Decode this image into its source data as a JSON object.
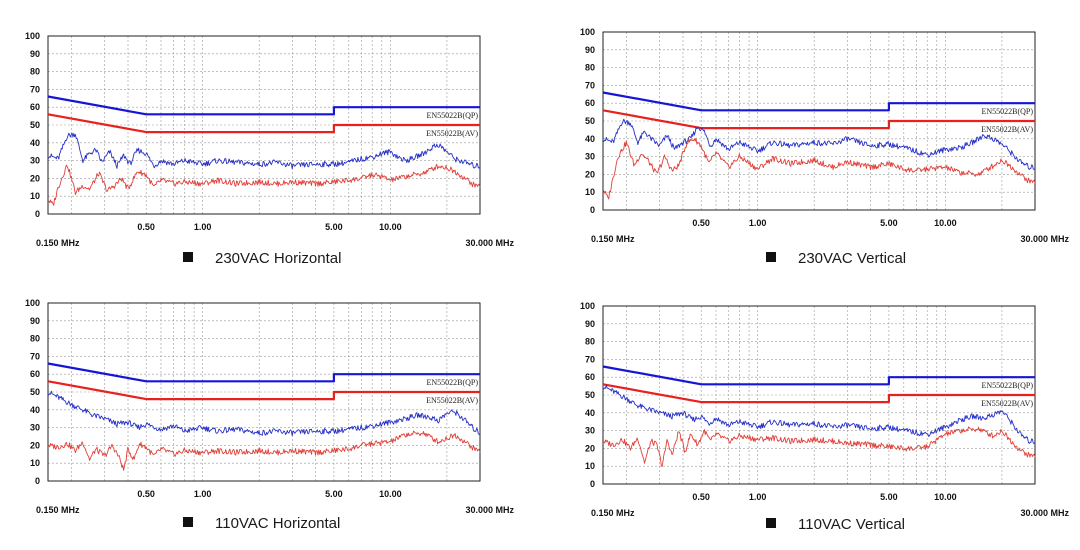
{
  "chart_data": [
    {
      "type": "line",
      "caption": "230VAC Horizontal",
      "x_scale": "log",
      "xlim": [
        0.15,
        30
      ],
      "ylim": [
        0,
        100
      ],
      "y_ticks": [
        0,
        10,
        20,
        30,
        40,
        50,
        60,
        70,
        80,
        90,
        100
      ],
      "x_ticks": [
        {
          "value": 0.5,
          "label": "0.50"
        },
        {
          "value": 1,
          "label": "1.00"
        },
        {
          "value": 5,
          "label": "5.00"
        },
        {
          "value": 10,
          "label": "10.00"
        }
      ],
      "x_start_label": "0.150 MHz",
      "x_end_label": "30.000 MHz",
      "grid": true,
      "series": [
        {
          "name": "EN55022B(QP)",
          "color": "#1515d6",
          "role": "limit",
          "x": [
            0.15,
            0.5,
            5,
            5,
            30
          ],
          "y": [
            66,
            56,
            56,
            60,
            60
          ]
        },
        {
          "name": "EN55022B(AV)",
          "color": "#e8201e",
          "role": "limit",
          "x": [
            0.15,
            0.5,
            5,
            5,
            30
          ],
          "y": [
            56,
            46,
            46,
            50,
            50
          ]
        },
        {
          "color": "#2630c8",
          "role": "measurement",
          "x": [
            0.15,
            0.17,
            0.19,
            0.21,
            0.23,
            0.25,
            0.27,
            0.29,
            0.32,
            0.35,
            0.38,
            0.41,
            0.45,
            0.5,
            0.55,
            0.6,
            0.7,
            0.8,
            1.0,
            1.2,
            1.5,
            2.0,
            2.5,
            3.0,
            4.0,
            5.0,
            6.0,
            7.0,
            8.0,
            9.0,
            10.0,
            11.0,
            12.0,
            13.0,
            15.0,
            17.0,
            18.0,
            20.0,
            22.0,
            25.0,
            28.0,
            30.0
          ],
          "y": [
            33,
            31,
            44,
            45,
            30,
            34,
            36,
            29,
            35,
            27,
            33,
            28,
            36,
            34,
            27,
            30,
            28,
            30,
            28,
            30,
            29,
            28,
            29,
            27,
            28,
            28,
            29,
            31,
            32,
            34,
            35,
            32,
            30,
            31,
            34,
            38,
            39,
            35,
            31,
            29,
            27,
            27
          ]
        },
        {
          "color": "#e0403a",
          "role": "measurement",
          "x": [
            0.15,
            0.16,
            0.17,
            0.19,
            0.21,
            0.23,
            0.25,
            0.28,
            0.31,
            0.34,
            0.37,
            0.4,
            0.45,
            0.5,
            0.55,
            0.6,
            0.7,
            0.8,
            1.0,
            1.2,
            1.5,
            2.0,
            2.5,
            3.0,
            4.0,
            5.0,
            6.0,
            7.0,
            8.0,
            9.0,
            10.0,
            12.0,
            15.0,
            18.0,
            20.0,
            22.0,
            25.0,
            28.0,
            30.0
          ],
          "y": [
            8,
            5,
            15,
            28,
            12,
            16,
            14,
            23,
            13,
            16,
            20,
            14,
            24,
            22,
            15,
            19,
            17,
            18,
            17,
            19,
            17,
            18,
            17,
            18,
            17,
            18,
            19,
            20,
            22,
            21,
            19,
            21,
            23,
            27,
            26,
            24,
            20,
            16,
            16
          ]
        }
      ]
    },
    {
      "type": "line",
      "caption": "230VAC Vertical",
      "x_scale": "log",
      "xlim": [
        0.15,
        30
      ],
      "ylim": [
        0,
        100
      ],
      "y_ticks": [
        0,
        10,
        20,
        30,
        40,
        50,
        60,
        70,
        80,
        90,
        100
      ],
      "x_ticks": [
        {
          "value": 0.5,
          "label": "0.50"
        },
        {
          "value": 1,
          "label": "1.00"
        },
        {
          "value": 5,
          "label": "5.00"
        },
        {
          "value": 10,
          "label": "10.00"
        }
      ],
      "x_start_label": "0.150 MHz",
      "x_end_label": "30.000 MHz",
      "grid": true,
      "series": [
        {
          "name": "EN55022B(QP)",
          "color": "#1515d6",
          "role": "limit",
          "x": [
            0.15,
            0.5,
            5,
            5,
            30
          ],
          "y": [
            66,
            56,
            56,
            60,
            60
          ]
        },
        {
          "name": "EN55022B(AV)",
          "color": "#e8201e",
          "role": "limit",
          "x": [
            0.15,
            0.5,
            5,
            5,
            30
          ],
          "y": [
            56,
            46,
            46,
            50,
            50
          ]
        },
        {
          "color": "#2630c8",
          "role": "measurement",
          "x": [
            0.15,
            0.17,
            0.19,
            0.21,
            0.23,
            0.25,
            0.27,
            0.3,
            0.33,
            0.36,
            0.4,
            0.44,
            0.48,
            0.52,
            0.56,
            0.6,
            0.7,
            0.8,
            1.0,
            1.2,
            1.5,
            2.0,
            2.5,
            3.0,
            4.0,
            5.0,
            6.0,
            7.0,
            8.0,
            10.0,
            12.0,
            14.0,
            16.0,
            18.0,
            20.0,
            22.0,
            25.0,
            28.0,
            30.0
          ],
          "y": [
            40,
            38,
            50,
            49,
            38,
            44,
            40,
            36,
            42,
            34,
            38,
            40,
            47,
            44,
            36,
            40,
            34,
            38,
            33,
            38,
            36,
            38,
            37,
            40,
            36,
            37,
            35,
            33,
            31,
            34,
            35,
            38,
            42,
            40,
            37,
            33,
            27,
            24,
            24
          ]
        },
        {
          "color": "#e0403a",
          "role": "measurement",
          "x": [
            0.15,
            0.16,
            0.18,
            0.2,
            0.22,
            0.24,
            0.26,
            0.29,
            0.32,
            0.35,
            0.38,
            0.42,
            0.46,
            0.5,
            0.55,
            0.6,
            0.7,
            0.8,
            1.0,
            1.2,
            1.5,
            2.0,
            2.5,
            3.0,
            4.0,
            5.0,
            6.0,
            7.0,
            8.0,
            10.0,
            12.0,
            15.0,
            18.0,
            20.0,
            22.0,
            25.0,
            28.0,
            30.0
          ],
          "y": [
            12,
            6,
            30,
            38,
            25,
            32,
            28,
            20,
            30,
            22,
            25,
            38,
            40,
            36,
            26,
            32,
            24,
            30,
            23,
            29,
            26,
            28,
            24,
            27,
            24,
            26,
            23,
            22,
            23,
            24,
            21,
            20,
            25,
            28,
            25,
            20,
            16,
            16
          ]
        }
      ]
    },
    {
      "type": "line",
      "caption": "110VAC Horizontal",
      "x_scale": "log",
      "xlim": [
        0.15,
        30
      ],
      "ylim": [
        0,
        100
      ],
      "y_ticks": [
        0,
        10,
        20,
        30,
        40,
        50,
        60,
        70,
        80,
        90,
        100
      ],
      "x_ticks": [
        {
          "value": 0.5,
          "label": "0.50"
        },
        {
          "value": 1,
          "label": "1.00"
        },
        {
          "value": 5,
          "label": "5.00"
        },
        {
          "value": 10,
          "label": "10.00"
        }
      ],
      "x_start_label": "0.150 MHz",
      "x_end_label": "30.000 MHz",
      "grid": true,
      "series": [
        {
          "name": "EN55022B(QP)",
          "color": "#1515d6",
          "role": "limit",
          "x": [
            0.15,
            0.5,
            5,
            5,
            30
          ],
          "y": [
            66,
            56,
            56,
            60,
            60
          ]
        },
        {
          "name": "EN55022B(AV)",
          "color": "#e8201e",
          "role": "limit",
          "x": [
            0.15,
            0.5,
            5,
            5,
            30
          ],
          "y": [
            56,
            46,
            46,
            50,
            50
          ]
        },
        {
          "color": "#2630c8",
          "role": "measurement",
          "x": [
            0.15,
            0.17,
            0.2,
            0.23,
            0.26,
            0.3,
            0.35,
            0.4,
            0.45,
            0.5,
            0.6,
            0.7,
            0.8,
            1.0,
            1.2,
            1.5,
            2.0,
            2.5,
            3.0,
            4.0,
            5.0,
            6.0,
            7.0,
            8.0,
            10.0,
            12.0,
            14.0,
            16.0,
            18.0,
            20.0,
            22.0,
            25.0,
            28.0,
            30.0
          ],
          "y": [
            50,
            47,
            43,
            40,
            37,
            35,
            32,
            33,
            30,
            32,
            29,
            31,
            28,
            30,
            28,
            29,
            27,
            28,
            27,
            28,
            28,
            29,
            30,
            31,
            33,
            35,
            37,
            36,
            34,
            38,
            39,
            34,
            29,
            27
          ]
        },
        {
          "color": "#e0403a",
          "role": "measurement",
          "x": [
            0.15,
            0.17,
            0.19,
            0.21,
            0.23,
            0.25,
            0.27,
            0.3,
            0.33,
            0.36,
            0.38,
            0.4,
            0.43,
            0.46,
            0.5,
            0.55,
            0.6,
            0.7,
            0.8,
            1.0,
            1.2,
            1.5,
            2.0,
            2.5,
            3.0,
            4.0,
            5.0,
            6.0,
            7.0,
            8.0,
            10.0,
            12.0,
            15.0,
            18.0,
            20.0,
            22.0,
            25.0,
            28.0,
            30.0
          ],
          "y": [
            20,
            19,
            21,
            17,
            22,
            12,
            18,
            14,
            20,
            13,
            6,
            18,
            12,
            21,
            19,
            14,
            18,
            15,
            17,
            16,
            17,
            16,
            17,
            16,
            17,
            16,
            17,
            18,
            20,
            21,
            22,
            26,
            27,
            22,
            24,
            26,
            22,
            18,
            17
          ]
        }
      ]
    },
    {
      "type": "line",
      "caption": "110VAC Vertical",
      "x_scale": "log",
      "xlim": [
        0.15,
        30
      ],
      "ylim": [
        0,
        100
      ],
      "y_ticks": [
        0,
        10,
        20,
        30,
        40,
        50,
        60,
        70,
        80,
        90,
        100
      ],
      "x_ticks": [
        {
          "value": 0.5,
          "label": "0.50"
        },
        {
          "value": 1,
          "label": "1.00"
        },
        {
          "value": 5,
          "label": "5.00"
        },
        {
          "value": 10,
          "label": "10.00"
        }
      ],
      "x_start_label": "0.150 MHz",
      "x_end_label": "30.000 MHz",
      "grid": true,
      "series": [
        {
          "name": "EN55022B(QP)",
          "color": "#1515d6",
          "role": "limit",
          "x": [
            0.15,
            0.5,
            5,
            5,
            30
          ],
          "y": [
            66,
            56,
            56,
            60,
            60
          ]
        },
        {
          "name": "EN55022B(AV)",
          "color": "#e8201e",
          "role": "limit",
          "x": [
            0.15,
            0.5,
            5,
            5,
            30
          ],
          "y": [
            56,
            46,
            46,
            50,
            50
          ]
        },
        {
          "color": "#2630c8",
          "role": "measurement",
          "x": [
            0.15,
            0.17,
            0.2,
            0.23,
            0.26,
            0.3,
            0.35,
            0.4,
            0.45,
            0.5,
            0.55,
            0.6,
            0.7,
            0.8,
            1.0,
            1.2,
            1.5,
            2.0,
            2.5,
            3.0,
            4.0,
            5.0,
            6.0,
            7.0,
            8.0,
            10.0,
            12.0,
            14.0,
            16.0,
            18.0,
            20.0,
            22.0,
            25.0,
            28.0,
            30.0
          ],
          "y": [
            55,
            52,
            48,
            44,
            42,
            40,
            38,
            40,
            36,
            38,
            34,
            37,
            33,
            35,
            32,
            35,
            33,
            34,
            32,
            33,
            31,
            32,
            30,
            29,
            28,
            32,
            36,
            38,
            37,
            39,
            41,
            36,
            28,
            24,
            24
          ]
        },
        {
          "color": "#e0403a",
          "role": "measurement",
          "x": [
            0.15,
            0.17,
            0.19,
            0.21,
            0.23,
            0.25,
            0.27,
            0.29,
            0.31,
            0.33,
            0.35,
            0.38,
            0.41,
            0.44,
            0.48,
            0.52,
            0.56,
            0.6,
            0.7,
            0.8,
            1.0,
            1.2,
            1.5,
            2.0,
            2.5,
            3.0,
            4.0,
            5.0,
            6.0,
            7.0,
            8.0,
            10.0,
            12.0,
            15.0,
            18.0,
            20.0,
            22.0,
            25.0,
            28.0,
            30.0
          ],
          "y": [
            24,
            22,
            25,
            20,
            26,
            12,
            24,
            22,
            10,
            25,
            16,
            30,
            18,
            28,
            22,
            30,
            24,
            28,
            24,
            27,
            25,
            26,
            24,
            25,
            24,
            23,
            22,
            21,
            20,
            20,
            21,
            28,
            30,
            31,
            27,
            30,
            25,
            19,
            16,
            16
          ]
        }
      ]
    }
  ]
}
